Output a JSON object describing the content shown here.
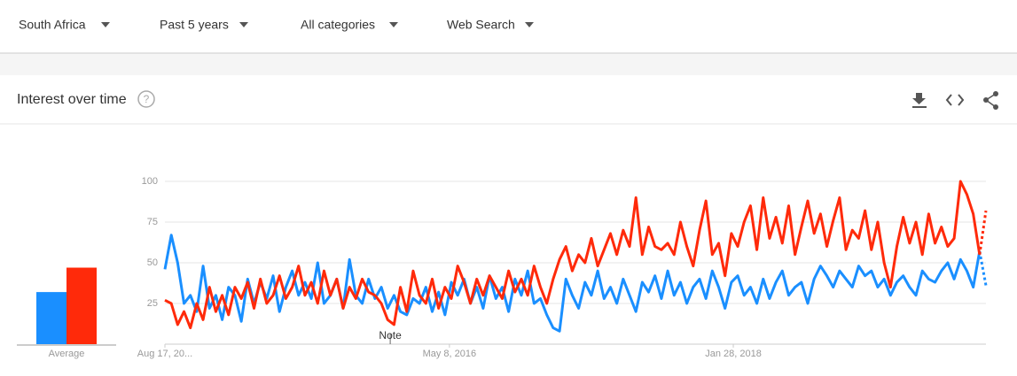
{
  "filters": [
    "South Africa",
    "Past 5 years",
    "All categories",
    "Web Search"
  ],
  "header": {
    "title": "Interest over time"
  },
  "chart_data": [
    {
      "type": "bar",
      "xlabel": "Average",
      "ylim": [
        0,
        100
      ],
      "series": [
        {
          "color": "#1a8fff",
          "values": [
            32
          ]
        },
        {
          "color": "#ff2a0a",
          "values": [
            47
          ]
        }
      ]
    },
    {
      "type": "line",
      "ylim": [
        0,
        100
      ],
      "yticks": [
        25,
        50,
        75,
        100
      ],
      "xlim": [
        0,
        129
      ],
      "grid": true,
      "xticks": [
        {
          "value": 0,
          "label": "Aug 17, 20..."
        },
        {
          "value": 44.7,
          "label": "May 8, 2016"
        },
        {
          "value": 89.3,
          "label": "Jan 28, 2018"
        }
      ],
      "annotations": [
        {
          "x": 35.4,
          "text": "Note"
        }
      ],
      "partial_last": true,
      "series": [
        {
          "color": "#1a8fff",
          "values": [
            46,
            67,
            50,
            25,
            30,
            20,
            48,
            22,
            30,
            15,
            35,
            30,
            14,
            40,
            25,
            38,
            28,
            42,
            20,
            35,
            45,
            30,
            38,
            28,
            50,
            25,
            30,
            40,
            22,
            52,
            30,
            25,
            40,
            28,
            35,
            22,
            30,
            20,
            18,
            28,
            25,
            35,
            20,
            32,
            18,
            38,
            30,
            40,
            25,
            35,
            22,
            42,
            28,
            35,
            20,
            40,
            30,
            45,
            25,
            28,
            18,
            10,
            8,
            40,
            30,
            22,
            38,
            30,
            45,
            28,
            35,
            25,
            40,
            30,
            20,
            38,
            32,
            42,
            28,
            45,
            30,
            38,
            25,
            35,
            40,
            28,
            45,
            35,
            22,
            38,
            42,
            30,
            35,
            25,
            40,
            28,
            38,
            45,
            30,
            35,
            38,
            25,
            40,
            48,
            42,
            35,
            45,
            40,
            35,
            48,
            42,
            45,
            35,
            40,
            30,
            38,
            42,
            35,
            30,
            45,
            40,
            38,
            45,
            50,
            40,
            52,
            45,
            35,
            57,
            36
          ]
        },
        {
          "color": "#ff2a0a",
          "values": [
            27,
            25,
            12,
            20,
            10,
            25,
            15,
            35,
            20,
            30,
            18,
            35,
            28,
            38,
            22,
            40,
            25,
            30,
            42,
            28,
            35,
            48,
            30,
            38,
            25,
            45,
            30,
            40,
            22,
            35,
            28,
            40,
            32,
            30,
            25,
            15,
            12,
            35,
            20,
            45,
            30,
            25,
            40,
            22,
            35,
            28,
            48,
            38,
            25,
            40,
            30,
            42,
            35,
            28,
            45,
            32,
            40,
            30,
            48,
            35,
            25,
            40,
            52,
            60,
            45,
            55,
            50,
            65,
            48,
            58,
            68,
            55,
            70,
            60,
            90,
            55,
            72,
            60,
            58,
            62,
            55,
            75,
            60,
            48,
            70,
            88,
            55,
            62,
            42,
            68,
            60,
            75,
            85,
            58,
            90,
            65,
            78,
            62,
            85,
            55,
            72,
            88,
            68,
            80,
            60,
            76,
            90,
            58,
            70,
            65,
            82,
            58,
            75,
            50,
            35,
            60,
            78,
            62,
            75,
            55,
            80,
            62,
            72,
            60,
            65,
            100,
            92,
            80,
            55,
            82
          ]
        }
      ]
    }
  ]
}
